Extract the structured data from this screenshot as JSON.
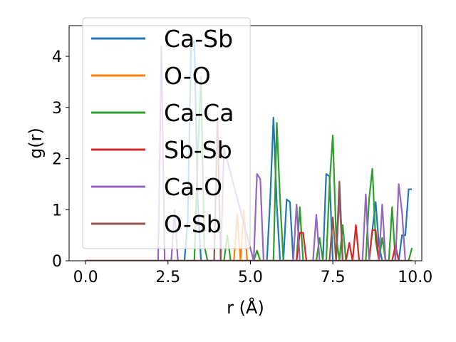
{
  "chart_data": {
    "type": "line",
    "xlabel": "r (Å)",
    "ylabel": "g(r)",
    "xlim": [
      -0.5,
      10.2
    ],
    "ylim": [
      0,
      4.6
    ],
    "xticks": [
      0.0,
      2.5,
      5.0,
      7.5,
      10.0
    ],
    "xtick_labels": [
      "0.0",
      "2.5",
      "5.0",
      "7.5",
      "10.0"
    ],
    "yticks": [
      0,
      1,
      2,
      3,
      4
    ],
    "ytick_labels": [
      "0",
      "1",
      "2",
      "3",
      "4"
    ],
    "grid": false,
    "legend_position": "upper-left",
    "series": [
      {
        "name": "Ca-Sb",
        "color": "#1f77b4",
        "x": [
          0.0,
          3.0,
          3.1,
          3.2,
          3.3,
          3.4,
          3.5,
          3.6,
          4.0,
          5.5,
          5.6,
          5.7,
          5.8,
          5.9,
          6.0,
          6.1,
          6.2,
          6.3,
          6.4,
          7.2,
          7.3,
          7.4,
          7.5,
          7.6,
          7.7,
          7.8,
          7.9,
          8.6,
          8.7,
          8.8,
          8.9,
          9.0,
          9.5,
          9.6,
          9.7,
          9.8,
          9.9
        ],
        "y": [
          0.0,
          0.0,
          0.8,
          4.2,
          4.3,
          1.2,
          0.0,
          0.0,
          0.0,
          0.0,
          1.2,
          2.8,
          1.1,
          0.0,
          0.0,
          1.2,
          1.15,
          0.0,
          0.0,
          0.0,
          1.7,
          1.65,
          0.0,
          0.0,
          1.5,
          0.0,
          0.0,
          0.0,
          0.6,
          1.15,
          0.3,
          0.0,
          0.0,
          0.5,
          0.5,
          1.4,
          1.4
        ]
      },
      {
        "name": "O-O",
        "color": "#ff7f0e",
        "x": [
          0.0,
          4.5,
          4.6,
          4.7,
          4.8,
          4.9,
          5.0,
          9.9
        ],
        "y": [
          0.0,
          0.0,
          0.9,
          0.0,
          1.0,
          0.0,
          0.0,
          0.0
        ]
      },
      {
        "name": "Ca-Ca",
        "color": "#2ca02c",
        "x": [
          0.0,
          3.3,
          3.4,
          3.5,
          3.6,
          3.7,
          4.2,
          4.3,
          4.4,
          5.1,
          5.2,
          5.3,
          5.4,
          5.7,
          5.8,
          5.9,
          6.0,
          6.1,
          6.4,
          6.5,
          6.6,
          6.7,
          7.0,
          7.1,
          7.2,
          7.3,
          7.4,
          7.5,
          7.6,
          7.7,
          7.8,
          7.9,
          8.0,
          8.1,
          8.5,
          8.6,
          8.7,
          8.8,
          8.9,
          9.0,
          9.1,
          9.2,
          9.3,
          9.4,
          9.5,
          9.8,
          9.9
        ],
        "y": [
          0.0,
          0.0,
          2.0,
          3.6,
          0.3,
          0.0,
          0.0,
          0.5,
          0.0,
          0.0,
          0.2,
          0.0,
          0.0,
          0.0,
          2.7,
          1.2,
          0.0,
          0.0,
          0.0,
          1.05,
          0.0,
          0.0,
          0.0,
          0.45,
          0.0,
          0.0,
          1.5,
          2.45,
          0.5,
          0.0,
          0.7,
          0.0,
          0.0,
          0.0,
          0.0,
          1.2,
          1.8,
          0.4,
          0.0,
          0.45,
          0.0,
          0.0,
          1.05,
          0.0,
          0.0,
          0.0,
          0.25
        ]
      },
      {
        "name": "Sb-Sb",
        "color": "#d62728",
        "x": [
          0.0,
          6.4,
          6.5,
          6.6,
          6.7,
          7.9,
          8.0,
          8.1,
          8.2,
          8.3,
          8.4,
          8.6,
          8.7,
          8.8,
          8.9,
          9.3,
          9.4,
          9.5,
          9.9
        ],
        "y": [
          0.0,
          0.0,
          0.55,
          0.55,
          0.0,
          0.0,
          0.35,
          0.0,
          0.7,
          0.0,
          0.0,
          0.0,
          0.6,
          0.6,
          0.0,
          0.0,
          0.3,
          0.0,
          0.0
        ]
      },
      {
        "name": "Ca-O",
        "color": "#9467bd",
        "x": [
          0.0,
          2.2,
          2.3,
          2.4,
          2.6,
          2.7,
          2.8,
          4.1,
          4.2,
          5.1,
          5.2,
          5.3,
          5.4,
          5.5,
          6.3,
          6.4,
          6.5,
          6.9,
          7.0,
          7.1,
          7.6,
          7.7,
          7.8,
          8.4,
          8.5,
          8.6,
          8.7,
          8.9,
          9.0,
          9.1,
          9.4,
          9.5,
          9.6,
          9.7,
          9.8,
          9.9
        ],
        "y": [
          0.0,
          0.0,
          4.2,
          0.0,
          0.0,
          1.0,
          0.0,
          0.0,
          2.2,
          0.0,
          1.7,
          1.6,
          0.0,
          0.0,
          0.0,
          1.1,
          0.0,
          0.0,
          0.9,
          0.0,
          0.0,
          1.25,
          0.0,
          0.0,
          1.3,
          0.0,
          0.0,
          0.0,
          1.1,
          0.0,
          0.0,
          1.5,
          0.95,
          0.0,
          0.0,
          0.0
        ]
      },
      {
        "name": "O-Sb",
        "color": "#8c564b",
        "x": [
          0.0,
          3.9,
          4.0,
          4.1,
          7.4,
          7.5,
          7.6,
          7.7,
          7.8,
          7.9,
          9.9
        ],
        "y": [
          0.0,
          0.0,
          2.8,
          0.0,
          0.0,
          0.85,
          0.0,
          1.55,
          0.0,
          0.0,
          0.0
        ]
      }
    ]
  }
}
